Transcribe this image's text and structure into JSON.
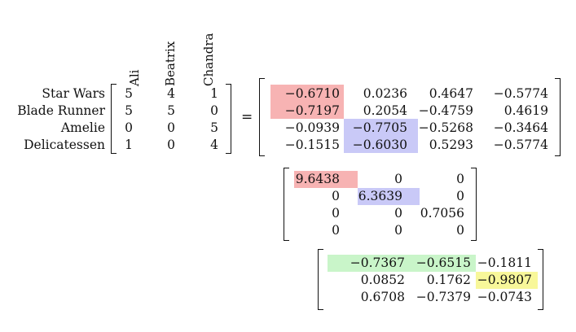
{
  "columns": [
    "Ali",
    "Beatrix",
    "Chandra"
  ],
  "rows": [
    "Star Wars",
    "Blade Runner",
    "Amelie",
    "Delicatessen"
  ],
  "ratings": [
    [
      "5",
      "4",
      "1"
    ],
    [
      "5",
      "5",
      "0"
    ],
    [
      "0",
      "0",
      "5"
    ],
    [
      "1",
      "0",
      "4"
    ]
  ],
  "equals": "=",
  "U": [
    [
      "−0.6710",
      "0.0236",
      "0.4647",
      "−0.5774"
    ],
    [
      "−0.7197",
      "0.2054",
      "−0.4759",
      "0.4619"
    ],
    [
      "−0.0939",
      "−0.7705",
      "−0.5268",
      "−0.3464"
    ],
    [
      "−0.1515",
      "−0.6030",
      "0.5293",
      "−0.5774"
    ]
  ],
  "S": [
    [
      "9.6438",
      "0",
      "0"
    ],
    [
      "0",
      "6.3639",
      "0"
    ],
    [
      "0",
      "0",
      "0.7056"
    ],
    [
      "0",
      "0",
      "0"
    ]
  ],
  "V": [
    [
      "−0.7367",
      "−0.6515",
      "−0.1811"
    ],
    [
      "0.0852",
      "0.1762",
      "−0.9807"
    ],
    [
      "0.6708",
      "−0.7379",
      "−0.0743"
    ]
  ],
  "colors": {
    "red": "#f7b3b3",
    "blue": "#c9c9f7",
    "green": "#c9f5c9",
    "yellow": "#f8f79a"
  }
}
